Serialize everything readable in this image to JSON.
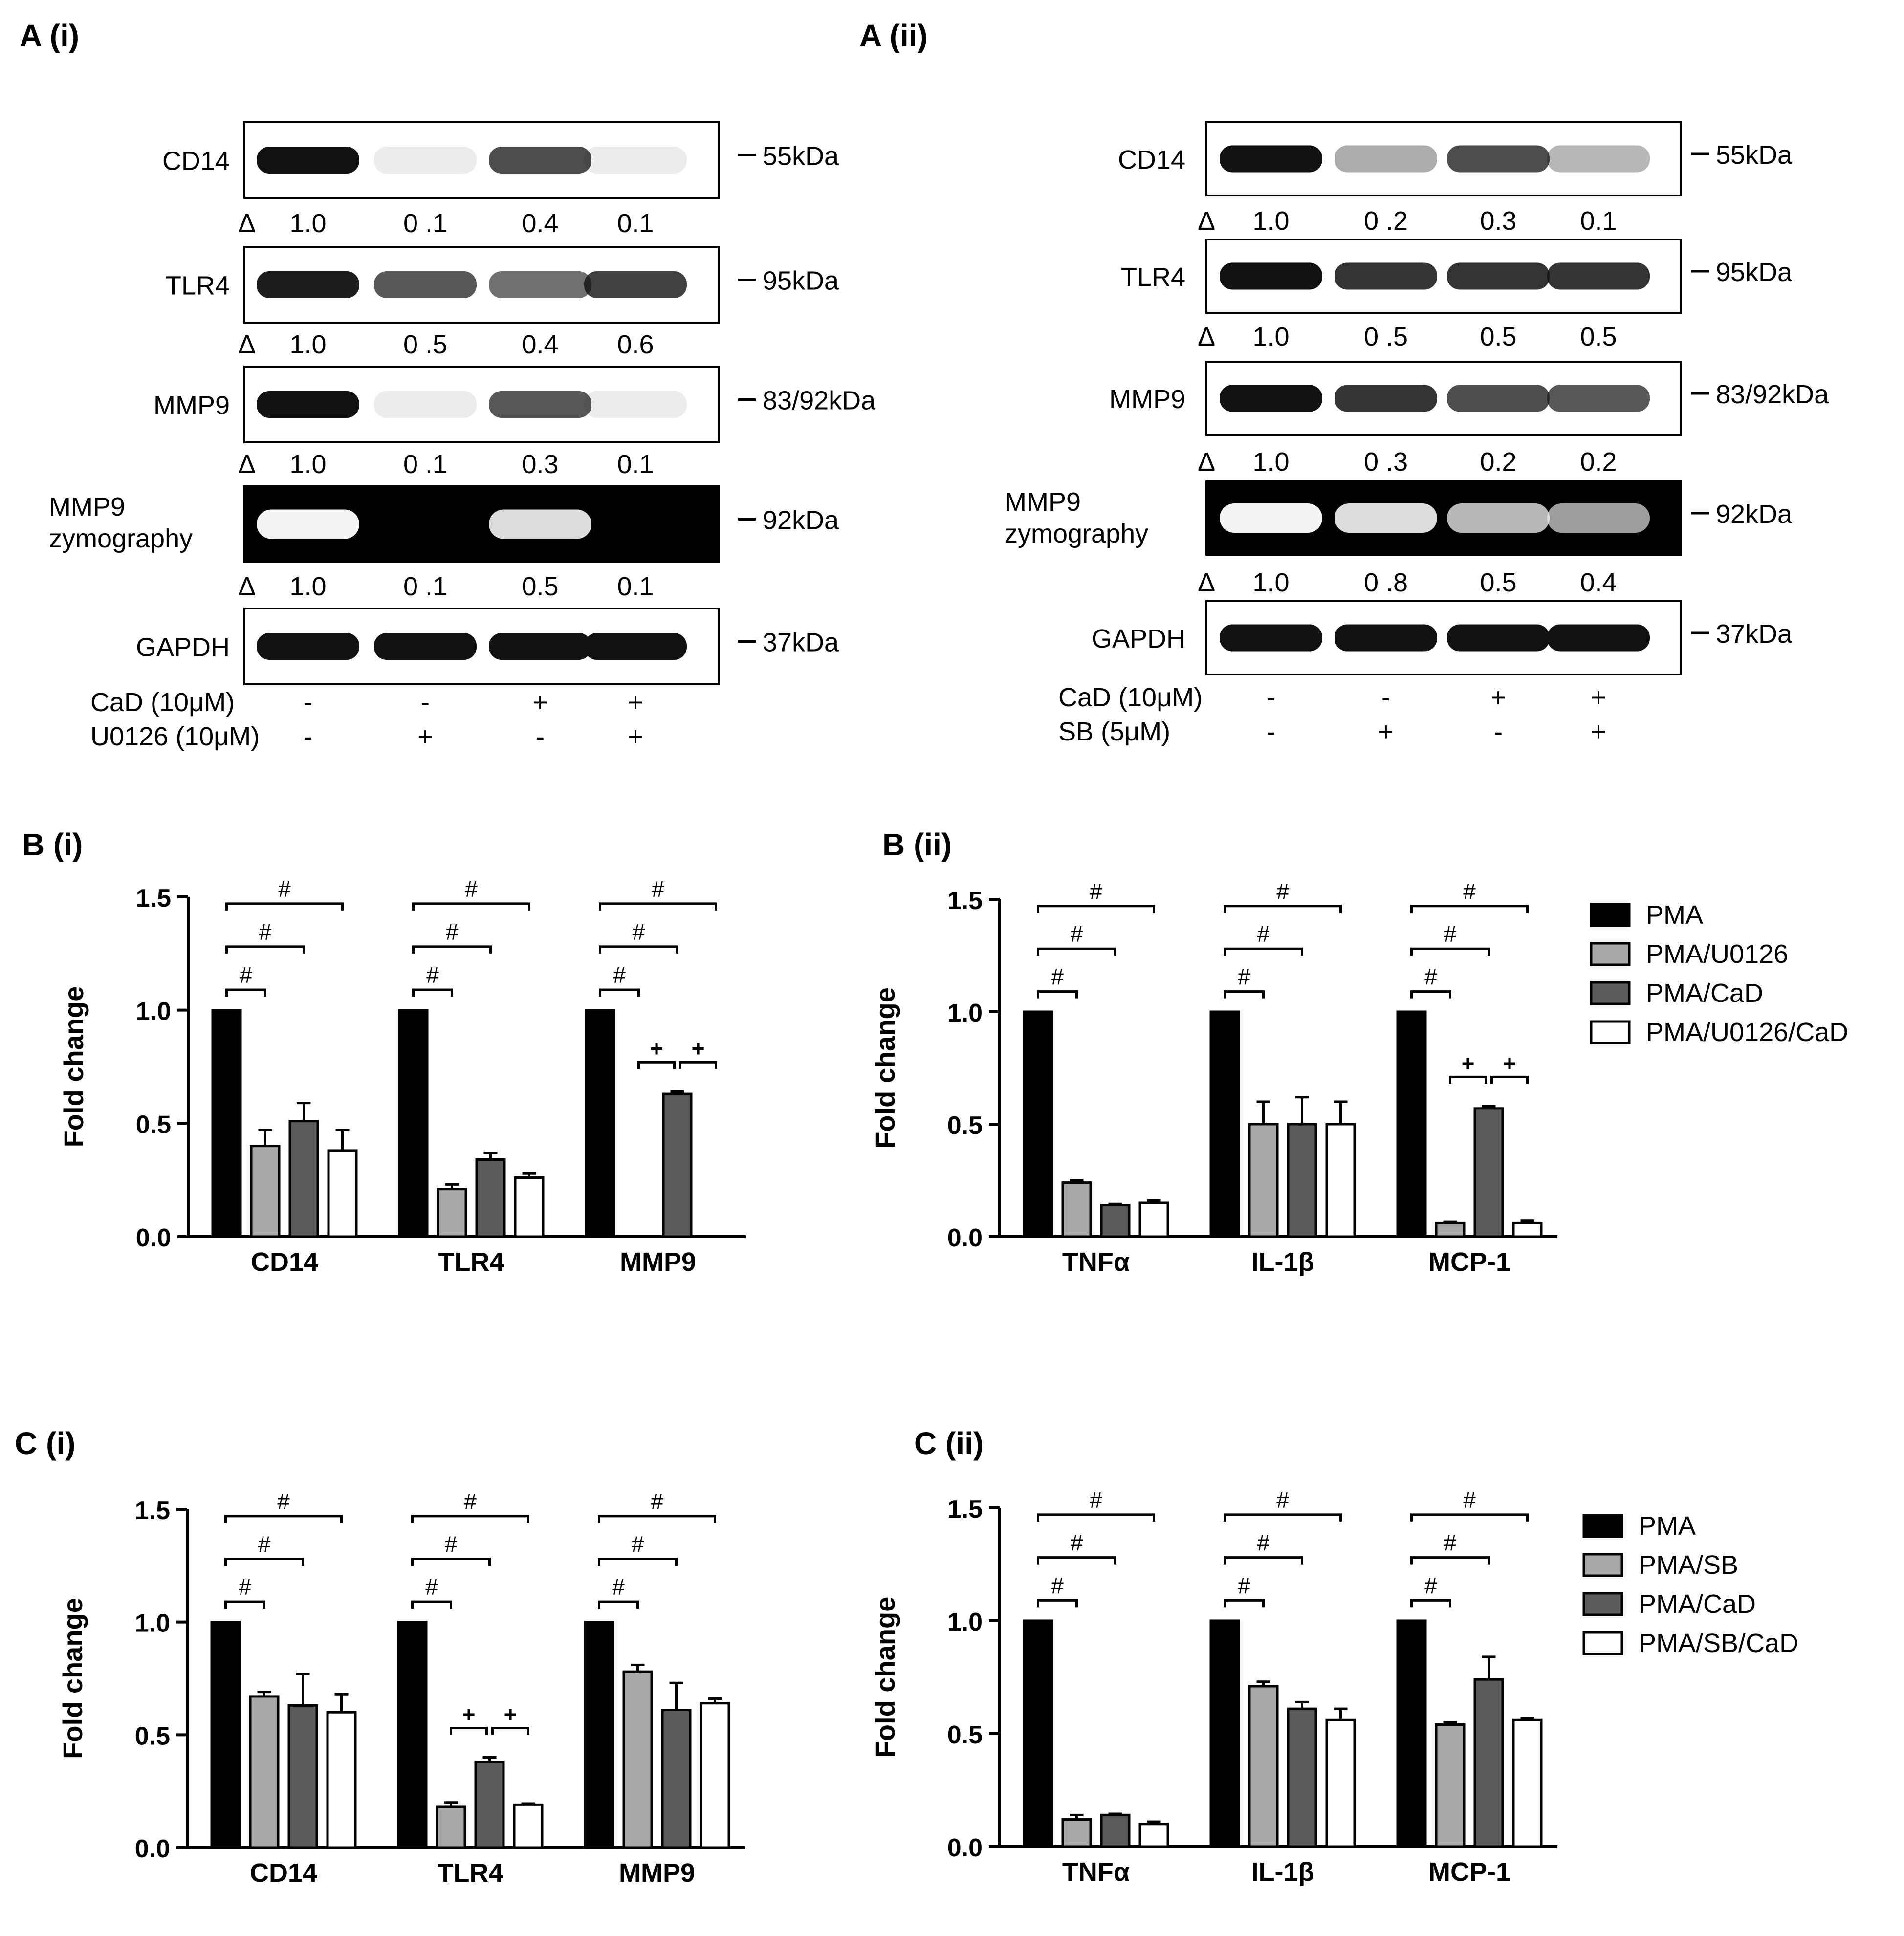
{
  "colors": {
    "pma": "#000000",
    "light": "#a8a8a8",
    "dark": "#5a5a5a",
    "open": "#ffffff",
    "band": "#111111",
    "zymo_bg": "#000000",
    "zymo_band": "#f4f4f4"
  },
  "blots": [
    {
      "panel_label": "A (i)",
      "rows": [
        {
          "label": "CD14",
          "marker": "55kDa",
          "quant": [
            "1.0",
            "0 .1",
            "0.4",
            "0.1"
          ],
          "intensity": [
            1.0,
            0.06,
            0.75,
            0.04
          ],
          "zymo": false
        },
        {
          "label": "TLR4",
          "marker": "95kDa",
          "quant": [
            "1.0",
            "0 .5",
            "0.4",
            "0.6"
          ],
          "intensity": [
            0.95,
            0.7,
            0.6,
            0.8
          ],
          "zymo": false
        },
        {
          "label": "MMP9",
          "marker": "83/92kDa",
          "quant": [
            "1.0",
            "0 .1",
            "0.3",
            "0.1"
          ],
          "intensity": [
            1.0,
            0.03,
            0.7,
            0.02
          ],
          "zymo": false
        },
        {
          "label": "MMP9 zymography",
          "marker": "92kDa",
          "quant": [
            "1.0",
            "0 .1",
            "0.5",
            "0.1"
          ],
          "intensity": [
            1.0,
            0.0,
            0.9,
            0.0
          ],
          "zymo": true
        },
        {
          "label": "GAPDH",
          "marker": "37kDa",
          "quant": null,
          "intensity": [
            1.0,
            1.0,
            1.0,
            1.0
          ],
          "zymo": false
        }
      ],
      "delta": "Δ",
      "treatments": [
        {
          "label": "CaD (10μM)",
          "signs": [
            "-",
            "-",
            "+",
            "+"
          ]
        },
        {
          "label": "U0126 (10μM)",
          "signs": [
            "-",
            "+",
            "-",
            "+"
          ]
        }
      ]
    },
    {
      "panel_label": "A (ii)",
      "rows": [
        {
          "label": "CD14",
          "marker": "55kDa",
          "quant": [
            "1.0",
            "0 .2",
            "0.3",
            "0.1"
          ],
          "intensity": [
            1.0,
            0.35,
            0.75,
            0.3
          ],
          "zymo": false
        },
        {
          "label": "TLR4",
          "marker": "95kDa",
          "quant": [
            "1.0",
            "0 .5",
            "0.5",
            "0.5"
          ],
          "intensity": [
            1.0,
            0.85,
            0.85,
            0.85
          ],
          "zymo": false
        },
        {
          "label": "MMP9",
          "marker": "83/92kDa",
          "quant": [
            "1.0",
            "0 .3",
            "0.2",
            "0.2"
          ],
          "intensity": [
            1.0,
            0.85,
            0.75,
            0.7
          ],
          "zymo": false
        },
        {
          "label": "MMP9 zymography",
          "marker": "92kDa",
          "quant": [
            "1.0",
            "0 .8",
            "0.5",
            "0.4"
          ],
          "intensity": [
            1.0,
            0.9,
            0.75,
            0.65
          ],
          "zymo": true
        },
        {
          "label": "GAPDH",
          "marker": "37kDa",
          "quant": null,
          "intensity": [
            1.0,
            1.0,
            1.0,
            1.0
          ],
          "zymo": false
        }
      ],
      "delta": "Δ",
      "treatments": [
        {
          "label": "CaD (10μM)",
          "signs": [
            "-",
            "-",
            "+",
            "+"
          ]
        },
        {
          "label": "SB (5μM)",
          "signs": [
            "-",
            "+",
            "-",
            "+"
          ]
        }
      ]
    }
  ],
  "chart_data": [
    {
      "panel_label": "B (i)",
      "type": "bar",
      "ylabel": "Fold change",
      "ylim": [
        0,
        1.5
      ],
      "yticks": [
        "0.0",
        "0.5",
        "1.0",
        "1.5"
      ],
      "categories": [
        "CD14",
        "TLR4",
        "MMP9"
      ],
      "series": [
        {
          "name": "PMA",
          "values": [
            1.0,
            1.0,
            1.0
          ],
          "err": [
            0,
            0,
            0
          ]
        },
        {
          "name": "PMA/U0126",
          "values": [
            0.4,
            0.21,
            0.0
          ],
          "err": [
            0.07,
            0.02,
            0
          ]
        },
        {
          "name": "PMA/CaD",
          "values": [
            0.51,
            0.34,
            0.63
          ],
          "err": [
            0.08,
            0.03,
            0.01
          ]
        },
        {
          "name": "PMA/U0126/CaD",
          "values": [
            0.38,
            0.26,
            0.0
          ],
          "err": [
            0.09,
            0.02,
            0
          ]
        }
      ],
      "sig_hash": "#",
      "sig_plus": "+",
      "plus_groups": [
        2
      ]
    },
    {
      "panel_label": "B (ii)",
      "type": "bar",
      "ylabel": "Fold change",
      "ylim": [
        0,
        1.5
      ],
      "yticks": [
        "0.0",
        "0.5",
        "1.0",
        "1.5"
      ],
      "categories": [
        "TNFα",
        "IL-1β",
        "MCP-1"
      ],
      "series": [
        {
          "name": "PMA",
          "values": [
            1.0,
            1.0,
            1.0
          ],
          "err": [
            0,
            0,
            0
          ]
        },
        {
          "name": "PMA/U0126",
          "values": [
            0.24,
            0.5,
            0.06
          ],
          "err": [
            0.01,
            0.1,
            0.005
          ]
        },
        {
          "name": "PMA/CaD",
          "values": [
            0.14,
            0.5,
            0.57
          ],
          "err": [
            0.005,
            0.12,
            0.01
          ]
        },
        {
          "name": "PMA/U0126/CaD",
          "values": [
            0.15,
            0.5,
            0.06
          ],
          "err": [
            0.01,
            0.1,
            0.01
          ]
        }
      ],
      "sig_hash": "#",
      "sig_plus": "+",
      "plus_groups": [
        2
      ],
      "legend": [
        "PMA",
        "PMA/U0126",
        "PMA/CaD",
        "PMA/U0126/CaD"
      ],
      "legend_position": "right"
    },
    {
      "panel_label": "C (i)",
      "type": "bar",
      "ylabel": "Fold change",
      "ylim": [
        0,
        1.5
      ],
      "yticks": [
        "0.0",
        "0.5",
        "1.0",
        "1.5"
      ],
      "categories": [
        "CD14",
        "TLR4",
        "MMP9"
      ],
      "series": [
        {
          "name": "PMA",
          "values": [
            1.0,
            1.0,
            1.0
          ],
          "err": [
            0,
            0,
            0
          ]
        },
        {
          "name": "PMA/SB",
          "values": [
            0.67,
            0.18,
            0.78
          ],
          "err": [
            0.02,
            0.02,
            0.03
          ]
        },
        {
          "name": "PMA/CaD",
          "values": [
            0.63,
            0.38,
            0.61
          ],
          "err": [
            0.14,
            0.02,
            0.12
          ]
        },
        {
          "name": "PMA/SB/CaD",
          "values": [
            0.6,
            0.19,
            0.64
          ],
          "err": [
            0.08,
            0.005,
            0.02
          ]
        }
      ],
      "sig_hash": "#",
      "sig_plus": "+",
      "plus_groups": [
        1
      ]
    },
    {
      "panel_label": "C (ii)",
      "type": "bar",
      "ylabel": "Fold change",
      "ylim": [
        0,
        1.5
      ],
      "yticks": [
        "0.0",
        "0.5",
        "1.0",
        "1.5"
      ],
      "categories": [
        "TNFα",
        "IL-1β",
        "MCP-1"
      ],
      "series": [
        {
          "name": "PMA",
          "values": [
            1.0,
            1.0,
            1.0
          ],
          "err": [
            0,
            0,
            0
          ]
        },
        {
          "name": "PMA/SB",
          "values": [
            0.12,
            0.71,
            0.54
          ],
          "err": [
            0.02,
            0.02,
            0.01
          ]
        },
        {
          "name": "PMA/CaD",
          "values": [
            0.14,
            0.61,
            0.74
          ],
          "err": [
            0.005,
            0.03,
            0.1
          ]
        },
        {
          "name": "PMA/SB/CaD",
          "values": [
            0.1,
            0.56,
            0.56
          ],
          "err": [
            0.01,
            0.05,
            0.01
          ]
        }
      ],
      "sig_hash": "#",
      "sig_plus": "+",
      "plus_groups": [],
      "legend": [
        "PMA",
        "PMA/SB",
        "PMA/CaD",
        "PMA/SB/CaD"
      ],
      "legend_position": "right"
    }
  ]
}
